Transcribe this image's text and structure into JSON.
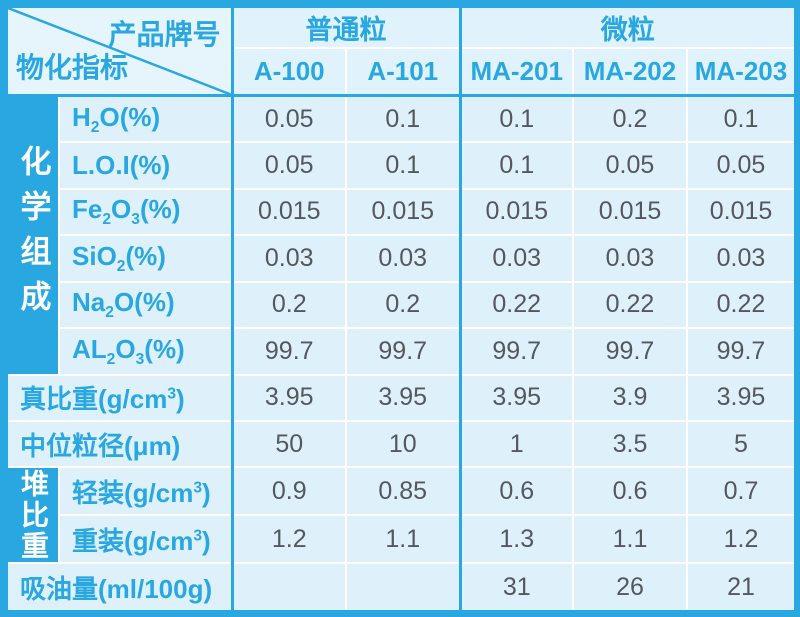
{
  "colors": {
    "accent_cyan": "#28a7e0",
    "cell_bg": "#def1fb",
    "corner_cell_bg": "#e6f4fc",
    "data_text": "#54585c",
    "separator": "#ffffff",
    "group_label_text": "#ffffff"
  },
  "table": {
    "corner": {
      "top_right": "产品牌号",
      "bottom_left": "物化指标"
    },
    "col_groups": [
      {
        "label": "普通粒"
      },
      {
        "label": "微粒"
      }
    ],
    "col_headers": [
      "A-100",
      "A-101",
      "MA-201",
      "MA-202",
      "MA-203"
    ],
    "row_groups": {
      "chem": "化学组成",
      "bulk": "堆比重"
    },
    "rows": [
      {
        "label_html": "H<sub>2</sub>O(%)",
        "values": [
          "0.05",
          "0.1",
          "0.1",
          "0.2",
          "0.1"
        ]
      },
      {
        "label_html": "L.O.I(%)",
        "values": [
          "0.05",
          "0.1",
          "0.1",
          "0.05",
          "0.05"
        ]
      },
      {
        "label_html": "Fe<sub>2</sub>O<sub>3</sub>(%)",
        "values": [
          "0.015",
          "0.015",
          "0.015",
          "0.015",
          "0.015"
        ]
      },
      {
        "label_html": "SiO<sub>2</sub>(%)",
        "values": [
          "0.03",
          "0.03",
          "0.03",
          "0.03",
          "0.03"
        ]
      },
      {
        "label_html": "Na<sub>2</sub>O(%)",
        "values": [
          "0.2",
          "0.2",
          "0.22",
          "0.22",
          "0.22"
        ]
      },
      {
        "label_html": "AL<sub>2</sub>O<sub>3</sub>(%)",
        "values": [
          "99.7",
          "99.7",
          "99.7",
          "99.7",
          "99.7"
        ]
      },
      {
        "label_html": "真比重(g/cm<sup>3</sup>)",
        "values": [
          "3.95",
          "3.95",
          "3.95",
          "3.9",
          "3.95"
        ]
      },
      {
        "label_html": "中位粒径(μm)",
        "values": [
          "50",
          "10",
          "1",
          "3.5",
          "5"
        ]
      },
      {
        "label_html": "轻装(g/cm<sup>3</sup>)",
        "values": [
          "0.9",
          "0.85",
          "0.6",
          "0.6",
          "0.7"
        ]
      },
      {
        "label_html": "重装(g/cm<sup>3</sup>)",
        "values": [
          "1.2",
          "1.1",
          "1.3",
          "1.1",
          "1.2"
        ]
      },
      {
        "label_html": "吸油量(ml/100g)",
        "values": [
          "",
          "",
          "31",
          "26",
          "21"
        ]
      }
    ]
  }
}
